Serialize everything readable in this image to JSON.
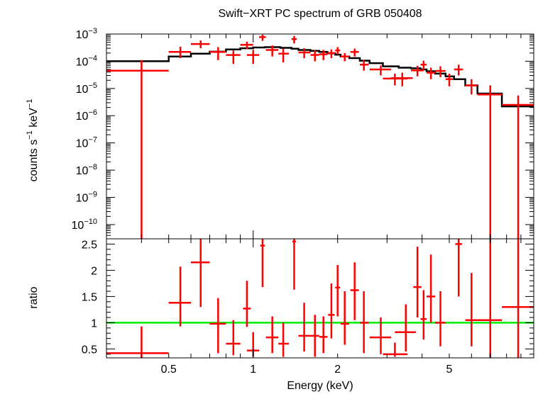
{
  "chart_data": [
    {
      "type": "scatter",
      "panel": "spectrum",
      "title": "Swift−XRT PC spectrum of GRB 050408",
      "xlabel": "Energy (keV)",
      "ylabel_main": "counts s",
      "ylabel_sup1": "−1",
      "ylabel_mid": " keV",
      "ylabel_sup2": "−1",
      "xscale": "log",
      "yscale": "log",
      "xlim": [
        0.3,
        10
      ],
      "ylim": [
        3e-11,
        0.001
      ],
      "yticks": [
        {
          "value": 1e-10,
          "base": "10",
          "exp": "−10"
        },
        {
          "value": 1e-09,
          "base": "10",
          "exp": "−9"
        },
        {
          "value": 1e-08,
          "base": "10",
          "exp": "−8"
        },
        {
          "value": 1e-07,
          "base": "10",
          "exp": "−7"
        },
        {
          "value": 1e-06,
          "base": "10",
          "exp": "−6"
        },
        {
          "value": 1e-05,
          "base": "10",
          "exp": "−5"
        },
        {
          "value": 0.0001,
          "base": "10",
          "exp": "−4"
        },
        {
          "value": 0.001,
          "base": "10",
          "exp": "−3"
        }
      ],
      "data_color": "#ff0000",
      "model_color": "#000000",
      "data": [
        {
          "x": 0.4,
          "xlo": 0.3,
          "xhi": 0.5,
          "y": 4.5e-05,
          "ylo": 3e-11,
          "yhi": 0.00011
        },
        {
          "x": 0.55,
          "xlo": 0.5,
          "xhi": 0.6,
          "y": 0.00022,
          "ylo": 0.00013,
          "yhi": 0.00034
        },
        {
          "x": 0.65,
          "xlo": 0.6,
          "xhi": 0.7,
          "y": 0.00043,
          "ylo": 0.0003,
          "yhi": 0.00058
        },
        {
          "x": 0.75,
          "xlo": 0.7,
          "xhi": 0.8,
          "y": 0.00022,
          "ylo": 0.00011,
          "yhi": 0.00033
        },
        {
          "x": 0.85,
          "xlo": 0.8,
          "xhi": 0.9,
          "y": 0.00017,
          "ylo": 8e-05,
          "yhi": 0.00025
        },
        {
          "x": 0.95,
          "xlo": 0.9,
          "xhi": 1.0,
          "y": 0.0004,
          "ylo": 0.00028,
          "yhi": 0.00052
        },
        {
          "x": 1.0,
          "xlo": 0.95,
          "xhi": 1.05,
          "y": 0.00017,
          "ylo": 8e-05,
          "yhi": 0.00026
        },
        {
          "x": 1.08,
          "xlo": 1.05,
          "xhi": 1.11,
          "y": 0.00077,
          "ylo": 0.00056,
          "yhi": 0.00095
        },
        {
          "x": 1.17,
          "xlo": 1.11,
          "xhi": 1.23,
          "y": 0.00026,
          "ylo": 0.00015,
          "yhi": 0.00038
        },
        {
          "x": 1.28,
          "xlo": 1.23,
          "xhi": 1.34,
          "y": 0.00019,
          "ylo": 9e-05,
          "yhi": 0.00029
        },
        {
          "x": 1.4,
          "xlo": 1.37,
          "xhi": 1.43,
          "y": 0.00065,
          "ylo": 0.00045,
          "yhi": 0.00085
        },
        {
          "x": 1.52,
          "xlo": 1.45,
          "xhi": 1.6,
          "y": 0.00021,
          "ylo": 0.00013,
          "yhi": 0.0003
        },
        {
          "x": 1.66,
          "xlo": 1.6,
          "xhi": 1.72,
          "y": 0.00017,
          "ylo": 0.0001,
          "yhi": 0.00025
        },
        {
          "x": 1.78,
          "xlo": 1.72,
          "xhi": 1.84,
          "y": 0.00018,
          "ylo": 0.00011,
          "yhi": 0.00026
        },
        {
          "x": 1.9,
          "xlo": 1.84,
          "xhi": 1.96,
          "y": 0.0002,
          "ylo": 0.00013,
          "yhi": 0.00027
        },
        {
          "x": 2.0,
          "xlo": 1.96,
          "xhi": 2.04,
          "y": 0.00025,
          "ylo": 0.00018,
          "yhi": 0.00033
        },
        {
          "x": 2.12,
          "xlo": 2.05,
          "xhi": 2.2,
          "y": 0.00015,
          "ylo": 0.0001,
          "yhi": 0.0002
        },
        {
          "x": 2.3,
          "xlo": 2.22,
          "xhi": 2.38,
          "y": 0.00022,
          "ylo": 0.00015,
          "yhi": 0.00029
        },
        {
          "x": 2.48,
          "xlo": 2.4,
          "xhi": 2.58,
          "y": 7.5e-05,
          "ylo": 4.5e-05,
          "yhi": 0.00011
        },
        {
          "x": 2.85,
          "xlo": 2.6,
          "xhi": 3.1,
          "y": 5e-05,
          "ylo": 3e-05,
          "yhi": 7e-05
        },
        {
          "x": 3.2,
          "xlo": 2.9,
          "xhi": 3.55,
          "y": 2.3e-05,
          "ylo": 1.3e-05,
          "yhi": 3.5e-05
        },
        {
          "x": 3.4,
          "xlo": 3.1,
          "xhi": 3.7,
          "y": 2.4e-05,
          "ylo": 1.2e-05,
          "yhi": 3.8e-05
        },
        {
          "x": 3.85,
          "xlo": 3.65,
          "xhi": 4.05,
          "y": 4.6e-05,
          "ylo": 2.8e-05,
          "yhi": 6.8e-05
        },
        {
          "x": 4.05,
          "xlo": 3.95,
          "xhi": 4.15,
          "y": 7.5e-05,
          "ylo": 5e-05,
          "yhi": 0.000105
        },
        {
          "x": 4.3,
          "xlo": 4.15,
          "xhi": 4.45,
          "y": 3.8e-05,
          "ylo": 2.2e-05,
          "yhi": 5.8e-05
        },
        {
          "x": 4.65,
          "xlo": 4.45,
          "xhi": 4.85,
          "y": 4.4e-05,
          "ylo": 2.6e-05,
          "yhi": 6.5e-05
        },
        {
          "x": 5.0,
          "xlo": 4.85,
          "xhi": 5.15,
          "y": 2.2e-05,
          "ylo": 1.2e-05,
          "yhi": 3.5e-05
        },
        {
          "x": 5.4,
          "xlo": 5.2,
          "xhi": 5.6,
          "y": 5e-05,
          "ylo": 3e-05,
          "yhi": 7.5e-05
        },
        {
          "x": 6.0,
          "xlo": 5.7,
          "xhi": 6.3,
          "y": 1.3e-05,
          "ylo": 6e-06,
          "yhi": 2.2e-05
        },
        {
          "x": 7.0,
          "xlo": 6.3,
          "xhi": 7.7,
          "y": 6e-06,
          "ylo": 3e-11,
          "yhi": 1.3e-05
        },
        {
          "x": 8.8,
          "xlo": 7.7,
          "xhi": 10.0,
          "y": 2.5e-06,
          "ylo": 3e-11,
          "yhi": 5.5e-06
        }
      ],
      "model_steps": [
        {
          "xlo": 0.3,
          "xhi": 0.5,
          "y": 0.0001
        },
        {
          "xlo": 0.5,
          "xhi": 0.6,
          "y": 0.00015
        },
        {
          "xlo": 0.6,
          "xhi": 0.7,
          "y": 0.00019
        },
        {
          "xlo": 0.7,
          "xhi": 0.8,
          "y": 0.000225
        },
        {
          "xlo": 0.8,
          "xhi": 0.9,
          "y": 0.00027
        },
        {
          "xlo": 0.9,
          "xhi": 1.0,
          "y": 0.0003
        },
        {
          "xlo": 1.0,
          "xhi": 1.1,
          "y": 0.00032
        },
        {
          "xlo": 1.1,
          "xhi": 1.25,
          "y": 0.00033
        },
        {
          "xlo": 1.25,
          "xhi": 1.37,
          "y": 0.00031
        },
        {
          "xlo": 1.37,
          "xhi": 1.45,
          "y": 0.00029
        },
        {
          "xlo": 1.45,
          "xhi": 1.6,
          "y": 0.00026
        },
        {
          "xlo": 1.6,
          "xhi": 1.72,
          "y": 0.00024
        },
        {
          "xlo": 1.72,
          "xhi": 1.84,
          "y": 0.00022
        },
        {
          "xlo": 1.84,
          "xhi": 1.96,
          "y": 0.000195
        },
        {
          "xlo": 1.96,
          "xhi": 2.05,
          "y": 0.000175
        },
        {
          "xlo": 2.05,
          "xhi": 2.2,
          "y": 0.00015
        },
        {
          "xlo": 2.2,
          "xhi": 2.4,
          "y": 0.00013
        },
        {
          "xlo": 2.4,
          "xhi": 2.6,
          "y": 0.000105
        },
        {
          "xlo": 2.6,
          "xhi": 2.9,
          "y": 8.5e-05
        },
        {
          "xlo": 2.9,
          "xhi": 3.3,
          "y": 6.5e-05
        },
        {
          "xlo": 3.3,
          "xhi": 3.65,
          "y": 5.8e-05
        },
        {
          "xlo": 3.65,
          "xhi": 3.95,
          "y": 5.5e-05
        },
        {
          "xlo": 3.95,
          "xhi": 4.15,
          "y": 5e-05
        },
        {
          "xlo": 4.15,
          "xhi": 4.45,
          "y": 4.3e-05
        },
        {
          "xlo": 4.45,
          "xhi": 4.85,
          "y": 3.5e-05
        },
        {
          "xlo": 4.85,
          "xhi": 5.2,
          "y": 2.8e-05
        },
        {
          "xlo": 5.2,
          "xhi": 5.7,
          "y": 2.2e-05
        },
        {
          "xlo": 5.7,
          "xhi": 6.3,
          "y": 1.3e-05
        },
        {
          "xlo": 6.3,
          "xhi": 7.7,
          "y": 6.5e-06
        },
        {
          "xlo": 7.7,
          "xhi": 10.0,
          "y": 2.2e-06
        }
      ]
    },
    {
      "type": "scatter",
      "panel": "ratio",
      "xlabel": "Energy (keV)",
      "ylabel": "ratio",
      "xscale": "log",
      "yscale": "linear",
      "xlim": [
        0.3,
        10
      ],
      "ylim": [
        0.33,
        2.6
      ],
      "yticks": [
        0.5,
        1,
        1.5,
        2,
        2.5
      ],
      "ytick_labels": [
        "0.5",
        "1",
        "1.5",
        "2",
        "2.5"
      ],
      "xtick_labels": [
        {
          "value": 0.5,
          "label": "0.5"
        },
        {
          "value": 1,
          "label": "1"
        },
        {
          "value": 2,
          "label": "2"
        },
        {
          "value": 5,
          "label": "5"
        }
      ],
      "reference_line": 1,
      "reference_color": "#00ee00",
      "data_color": "#ff0000",
      "data": [
        {
          "x": 0.4,
          "xlo": 0.3,
          "xhi": 0.5,
          "y": 0.42,
          "ylo": 0.33,
          "yhi": 0.93
        },
        {
          "x": 0.55,
          "xlo": 0.5,
          "xhi": 0.6,
          "y": 1.38,
          "ylo": 0.93,
          "yhi": 2.07
        },
        {
          "x": 0.65,
          "xlo": 0.6,
          "xhi": 0.7,
          "y": 2.15,
          "ylo": 1.3,
          "yhi": 2.6
        },
        {
          "x": 0.75,
          "xlo": 0.7,
          "xhi": 0.8,
          "y": 0.98,
          "ylo": 0.42,
          "yhi": 1.47
        },
        {
          "x": 0.85,
          "xlo": 0.8,
          "xhi": 0.9,
          "y": 0.6,
          "ylo": 0.38,
          "yhi": 1.05
        },
        {
          "x": 0.95,
          "xlo": 0.92,
          "xhi": 0.98,
          "y": 1.27,
          "ylo": 0.92,
          "yhi": 1.8
        },
        {
          "x": 1.0,
          "xlo": 0.95,
          "xhi": 1.05,
          "y": 0.47,
          "ylo": 0.35,
          "yhi": 0.82
        },
        {
          "x": 1.08,
          "xlo": 1.06,
          "xhi": 1.1,
          "y": 2.47,
          "ylo": 1.68,
          "yhi": 2.6
        },
        {
          "x": 1.17,
          "xlo": 1.11,
          "xhi": 1.23,
          "y": 0.72,
          "ylo": 0.42,
          "yhi": 1.12
        },
        {
          "x": 1.28,
          "xlo": 1.23,
          "xhi": 1.34,
          "y": 0.6,
          "ylo": 0.35,
          "yhi": 1.0
        },
        {
          "x": 1.4,
          "xlo": 1.38,
          "xhi": 1.42,
          "y": 2.55,
          "ylo": 1.63,
          "yhi": 2.6
        },
        {
          "x": 1.52,
          "xlo": 1.45,
          "xhi": 1.6,
          "y": 0.75,
          "ylo": 0.45,
          "yhi": 1.38
        },
        {
          "x": 1.66,
          "xlo": 1.6,
          "xhi": 1.72,
          "y": 0.75,
          "ylo": 0.35,
          "yhi": 1.15
        },
        {
          "x": 1.78,
          "xlo": 1.72,
          "xhi": 1.84,
          "y": 0.73,
          "ylo": 0.42,
          "yhi": 1.12
        },
        {
          "x": 1.9,
          "xlo": 1.85,
          "xhi": 1.95,
          "y": 1.15,
          "ylo": 0.7,
          "yhi": 1.75
        },
        {
          "x": 2.0,
          "xlo": 1.96,
          "xhi": 2.04,
          "y": 1.67,
          "ylo": 1.12,
          "yhi": 2.1
        },
        {
          "x": 2.12,
          "xlo": 2.05,
          "xhi": 2.2,
          "y": 0.98,
          "ylo": 0.58,
          "yhi": 1.6
        },
        {
          "x": 2.3,
          "xlo": 2.22,
          "xhi": 2.38,
          "y": 1.62,
          "ylo": 1.05,
          "yhi": 2.15
        },
        {
          "x": 2.48,
          "xlo": 2.4,
          "xhi": 2.58,
          "y": 1.0,
          "ylo": 0.42,
          "yhi": 1.6
        },
        {
          "x": 2.85,
          "xlo": 2.6,
          "xhi": 3.1,
          "y": 0.72,
          "ylo": 0.4,
          "yhi": 1.1
        },
        {
          "x": 3.2,
          "xlo": 2.9,
          "xhi": 3.55,
          "y": 0.4,
          "ylo": 0.35,
          "yhi": 0.62
        },
        {
          "x": 3.5,
          "xlo": 3.2,
          "xhi": 3.8,
          "y": 0.82,
          "ylo": 0.45,
          "yhi": 1.35
        },
        {
          "x": 3.85,
          "xlo": 3.72,
          "xhi": 3.98,
          "y": 1.68,
          "ylo": 1.1,
          "yhi": 2.45
        },
        {
          "x": 4.05,
          "xlo": 3.95,
          "xhi": 4.15,
          "y": 1.07,
          "ylo": 0.68,
          "yhi": 1.62
        },
        {
          "x": 4.3,
          "xlo": 4.15,
          "xhi": 4.45,
          "y": 1.5,
          "ylo": 1.0,
          "yhi": 2.3
        },
        {
          "x": 4.65,
          "xlo": 4.45,
          "xhi": 4.85,
          "y": 1.0,
          "ylo": 0.55,
          "yhi": 1.6
        },
        {
          "x": 5.4,
          "xlo": 5.25,
          "xhi": 5.55,
          "y": 2.5,
          "ylo": 1.5,
          "yhi": 2.6
        },
        {
          "x": 6.0,
          "xlo": 5.7,
          "xhi": 6.3,
          "y": 1.05,
          "ylo": 0.55,
          "yhi": 1.95
        },
        {
          "x": 7.0,
          "xlo": 6.3,
          "xhi": 7.7,
          "y": 1.05,
          "ylo": 0.33,
          "yhi": 2.6
        },
        {
          "x": 8.8,
          "xlo": 7.7,
          "xhi": 10.0,
          "y": 1.3,
          "ylo": 0.33,
          "yhi": 2.6
        }
      ]
    }
  ]
}
